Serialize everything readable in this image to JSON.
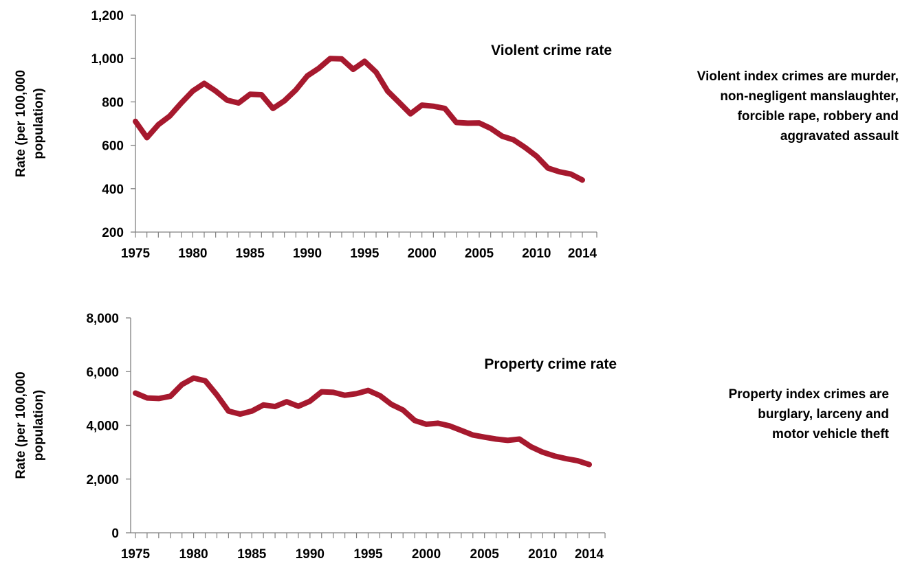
{
  "colors": {
    "line": "#a6192e",
    "axis": "#808080",
    "text": "#000000"
  },
  "chart_data": [
    {
      "type": "line",
      "title": "Violent crime rate",
      "ylabel": "Rate (per 100,000 population)",
      "xlabel": "",
      "ylim": [
        200,
        1200
      ],
      "yticks": [
        "200",
        "400",
        "600",
        "800",
        "1,000",
        "1,200"
      ],
      "xtick_labels": [
        "1975",
        "1980",
        "1985",
        "1990",
        "1995",
        "2000",
        "2005",
        "2010",
        "2014"
      ],
      "note": [
        "Violent index crimes are murder,",
        "non-negligent manslaughter,",
        "forcible rape, robbery and",
        "aggravated assault"
      ],
      "x": [
        1975,
        1976,
        1977,
        1978,
        1979,
        1980,
        1981,
        1982,
        1983,
        1984,
        1985,
        1986,
        1987,
        1988,
        1989,
        1990,
        1991,
        1992,
        1993,
        1994,
        1995,
        1996,
        1997,
        1998,
        1999,
        2000,
        2001,
        2002,
        2003,
        2004,
        2005,
        2006,
        2007,
        2008,
        2009,
        2010,
        2011,
        2012,
        2013,
        2014
      ],
      "values": [
        710,
        635,
        695,
        735,
        795,
        850,
        885,
        850,
        808,
        795,
        835,
        833,
        770,
        805,
        855,
        920,
        955,
        1000,
        998,
        950,
        987,
        937,
        850,
        798,
        745,
        785,
        780,
        770,
        705,
        702,
        703,
        678,
        642,
        625,
        590,
        550,
        495,
        478,
        467,
        440
      ]
    },
    {
      "type": "line",
      "title": "Property crime rate",
      "ylabel": "Rate (per 100,000 population)",
      "xlabel": "",
      "ylim": [
        0,
        8000
      ],
      "yticks": [
        "0",
        "2,000",
        "4,000",
        "6,000",
        "8,000"
      ],
      "xtick_labels": [
        "1975",
        "1980",
        "1985",
        "1990",
        "1995",
        "2000",
        "2005",
        "2010",
        "2014"
      ],
      "note": [
        "Property index crimes are",
        "burglary, larceny and",
        "motor vehicle theft"
      ],
      "x": [
        1975,
        1976,
        1977,
        1978,
        1979,
        1980,
        1981,
        1982,
        1983,
        1984,
        1985,
        1986,
        1987,
        1988,
        1989,
        1990,
        1991,
        1992,
        1993,
        1994,
        1995,
        1996,
        1997,
        1998,
        1999,
        2000,
        2001,
        2002,
        2003,
        2004,
        2005,
        2006,
        2007,
        2008,
        2009,
        2010,
        2011,
        2012,
        2013,
        2014
      ],
      "values": [
        5200,
        5020,
        5000,
        5080,
        5520,
        5760,
        5660,
        5130,
        4530,
        4420,
        4530,
        4760,
        4700,
        4880,
        4710,
        4900,
        5250,
        5230,
        5120,
        5180,
        5300,
        5110,
        4780,
        4570,
        4180,
        4040,
        4080,
        3980,
        3810,
        3640,
        3560,
        3490,
        3440,
        3490,
        3200,
        3000,
        2860,
        2760,
        2680,
        2540
      ]
    }
  ]
}
